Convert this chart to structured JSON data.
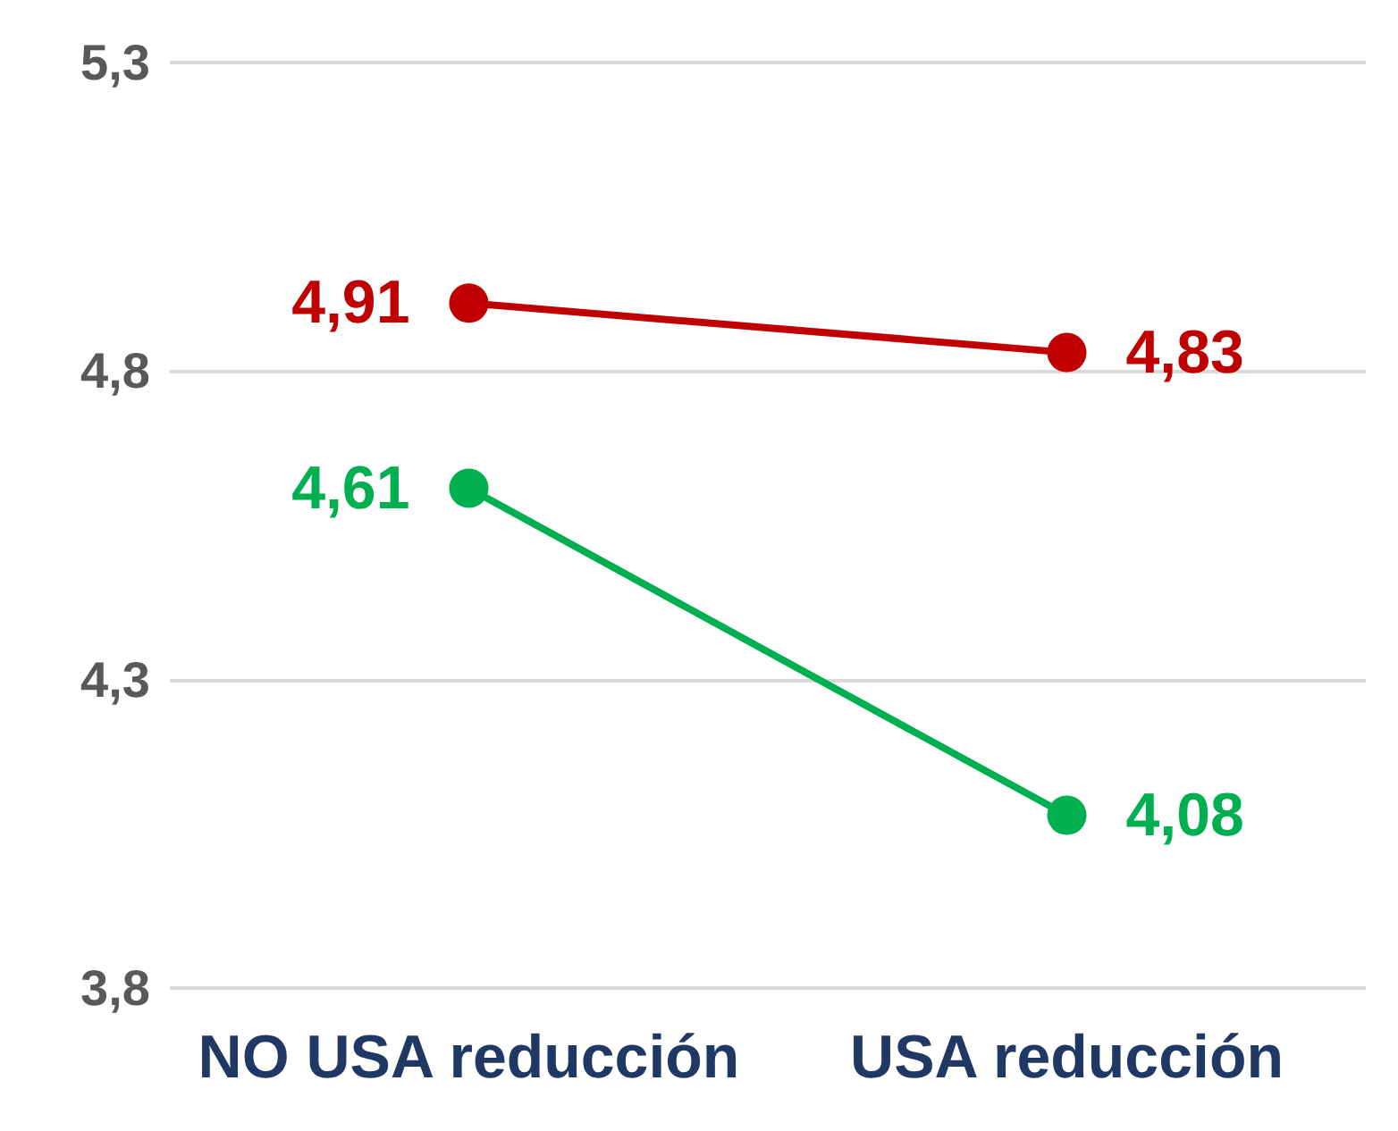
{
  "chart_data": {
    "type": "line",
    "categories": [
      "NO USA reducción",
      "USA reducción"
    ],
    "series": [
      {
        "color": "#c00000",
        "values": [
          4.91,
          4.83
        ],
        "value_labels": [
          "4,91",
          "4,83"
        ]
      },
      {
        "color": "#00b050",
        "values": [
          4.61,
          4.08
        ],
        "value_labels": [
          "4,61",
          "4,08"
        ]
      }
    ],
    "ylim": [
      3.8,
      5.3
    ],
    "yticks": [
      {
        "value": 3.8,
        "label": "3,8"
      },
      {
        "value": 4.3,
        "label": "4,3"
      },
      {
        "value": 4.8,
        "label": "4,8"
      },
      {
        "value": 5.3,
        "label": "5,3"
      }
    ],
    "grid": "y",
    "marker": "circle",
    "line_style": "solid"
  }
}
